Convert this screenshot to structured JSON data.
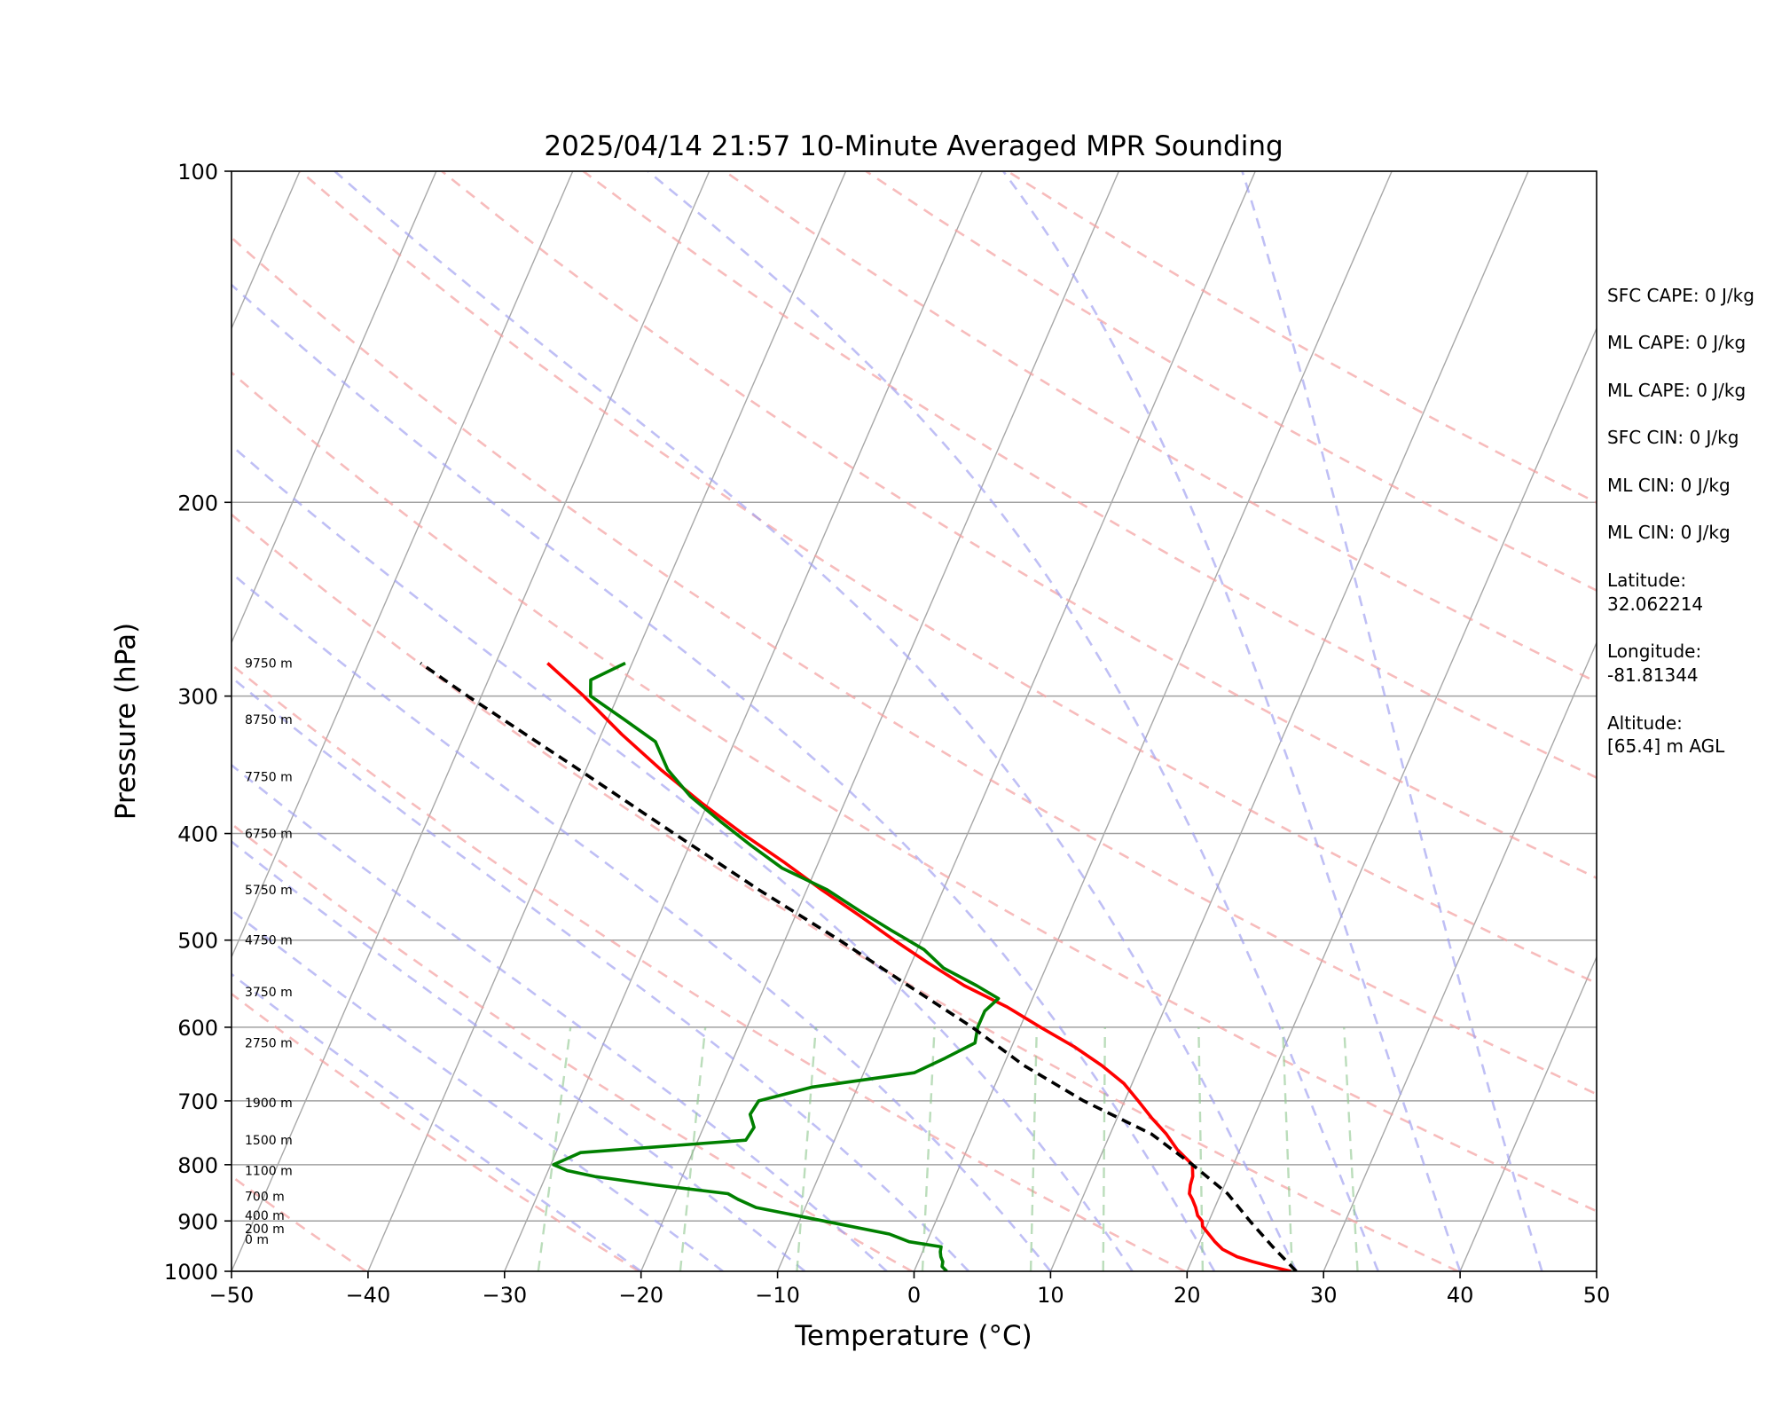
{
  "chart_data": {
    "type": "line",
    "title": "2025/04/14 21:57 10-Minute Averaged MPR Sounding",
    "xlabel": "Temperature (°C)",
    "ylabel": "Pressure (hPa)",
    "xlim": [
      -50,
      50
    ],
    "ylim": [
      1000,
      100
    ],
    "y_scale": "log",
    "x_ticks": [
      "−50",
      "−40",
      "−30",
      "−20",
      "−10",
      "0",
      "10",
      "20",
      "30",
      "40",
      "50"
    ],
    "y_ticks": [
      "100",
      "200",
      "300",
      "400",
      "500",
      "600",
      "700",
      "800",
      "900",
      "1000"
    ],
    "grid": true,
    "skew": true,
    "height_labels": [
      "9750 m",
      "8750 m",
      "7750 m",
      "6750 m",
      "5750 m",
      "4750 m",
      "3750 m",
      "2750 m",
      "1900 m",
      "1500 m",
      "1100 m",
      "700 m",
      "400 m",
      "200 m",
      "0 m"
    ],
    "height_label_pressures": [
      280,
      315,
      355,
      400,
      450,
      500,
      557,
      620,
      703,
      760,
      810,
      855,
      890,
      915,
      935
    ],
    "series": [
      {
        "color": "#ff0000",
        "style": "solid",
        "p": [
          1000,
          990,
          980,
          970,
          955,
          940,
          925,
          910,
          900,
          890,
          875,
          860,
          850,
          835,
          820,
          800,
          775,
          750,
          725,
          700,
          675,
          650,
          625,
          600,
          575,
          550,
          525,
          500,
          475,
          450,
          425,
          400,
          375,
          350,
          325,
          300,
          280
        ],
        "t": [
          27.6,
          26,
          24.5,
          23.2,
          21.9,
          21.1,
          20.4,
          19.7,
          19.5,
          19.0,
          18.6,
          18.1,
          17.7,
          17.5,
          17.4,
          17.0,
          15.4,
          14.1,
          12.5,
          11.0,
          9.4,
          7.2,
          4.6,
          1.5,
          -1.6,
          -5.4,
          -8.7,
          -12.0,
          -15.3,
          -18.9,
          -22.5,
          -26.5,
          -30.5,
          -34.5,
          -38.5,
          -42.5,
          -46.2
        ]
      },
      {
        "color": "#008000",
        "style": "solid",
        "p": [
          1000,
          990,
          980,
          970,
          960,
          950,
          940,
          925,
          900,
          875,
          860,
          850,
          835,
          820,
          810,
          800,
          780,
          760,
          740,
          720,
          700,
          680,
          660,
          640,
          620,
          600,
          580,
          565,
          550,
          530,
          510,
          490,
          470,
          450,
          430,
          410,
          390,
          370,
          350,
          330,
          315,
          300,
          290,
          280
        ],
        "t": [
          2.4,
          1.9,
          1.8,
          1.5,
          1.3,
          1.2,
          -1.3,
          -3.0,
          -8.2,
          -13.6,
          -15.2,
          -16.1,
          -21.6,
          -26.4,
          -28.6,
          -29.8,
          -28.2,
          -16.5,
          -16.3,
          -17.0,
          -16.8,
          -13.3,
          -6.3,
          -4.5,
          -2.8,
          -3.1,
          -3.1,
          -2.5,
          -4.5,
          -7.5,
          -9.5,
          -12.5,
          -15.5,
          -18.5,
          -22.5,
          -25.5,
          -28.5,
          -31.5,
          -34.0,
          -35.8,
          -38.8,
          -42.0,
          -42.5,
          -40.5
        ]
      },
      {
        "color": "#000000",
        "style": "dashed",
        "p": [
          1000,
          950,
          900,
          850,
          800,
          750,
          700,
          650,
          600,
          550,
          500,
          450,
          400,
          350,
          300,
          280
        ],
        "t": [
          28.0,
          25.5,
          23.0,
          20.5,
          17.0,
          13.0,
          7.0,
          1.5,
          -3.5,
          -9.5,
          -16.0,
          -23.5,
          -31.5,
          -40.5,
          -51.0,
          -55.5
        ]
      }
    ]
  },
  "info_panel": [
    "SFC CAPE: 0 J/kg",
    "ML CAPE: 0 J/kg",
    "ML CAPE: 0 J/kg",
    "SFC CIN: 0 J/kg",
    "ML CIN: 0 J/kg",
    "ML CIN: 0 J/kg",
    "Latitude:",
    "32.062214",
    "Longitude:",
    "-81.81344",
    "Altitude:",
    "[65.4] m AGL"
  ]
}
